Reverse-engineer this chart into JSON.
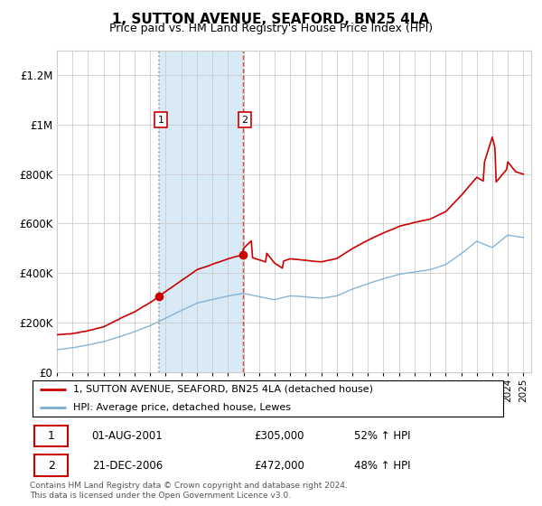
{
  "title": "1, SUTTON AVENUE, SEAFORD, BN25 4LA",
  "subtitle": "Price paid vs. HM Land Registry's House Price Index (HPI)",
  "legend_line1": "1, SUTTON AVENUE, SEAFORD, BN25 4LA (detached house)",
  "legend_line2": "HPI: Average price, detached house, Lewes",
  "transaction1_date": "01-AUG-2001",
  "transaction1_price": "£305,000",
  "transaction1_hpi": "52% ↑ HPI",
  "transaction1_year": 2001.58,
  "transaction1_value": 305000,
  "transaction2_date": "21-DEC-2006",
  "transaction2_price": "£472,000",
  "transaction2_hpi": "48% ↑ HPI",
  "transaction2_year": 2006.97,
  "transaction2_value": 472000,
  "footer": "Contains HM Land Registry data © Crown copyright and database right 2024.\nThis data is licensed under the Open Government Licence v3.0.",
  "red_color": "#cc0000",
  "blue_color": "#7aadcf",
  "shade_color": "#d8eaf5",
  "ylim": [
    0,
    1300000
  ],
  "xlim_start": 1995.0,
  "xlim_end": 2025.5
}
